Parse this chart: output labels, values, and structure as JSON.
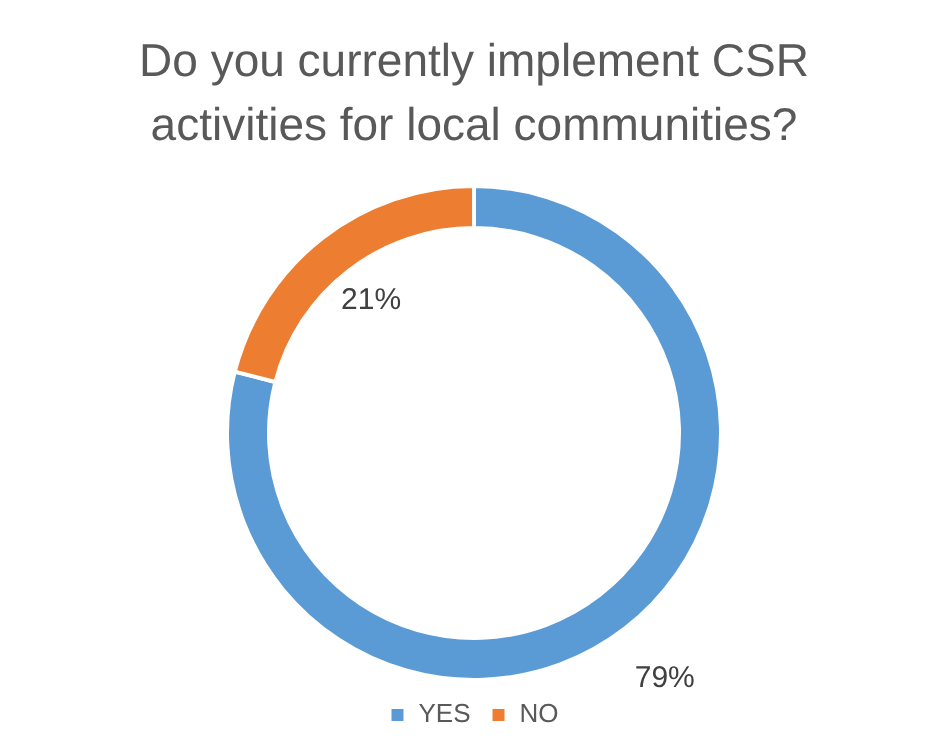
{
  "chart_data": {
    "type": "donut",
    "title": "Do you currently implement CSR activities for local communities?",
    "categories": [
      "YES",
      "NO"
    ],
    "values": [
      79,
      21
    ],
    "colors": [
      "#5b9bd5",
      "#ed7d31"
    ],
    "value_labels": [
      "79%",
      "21%"
    ],
    "legend": "bottom"
  }
}
